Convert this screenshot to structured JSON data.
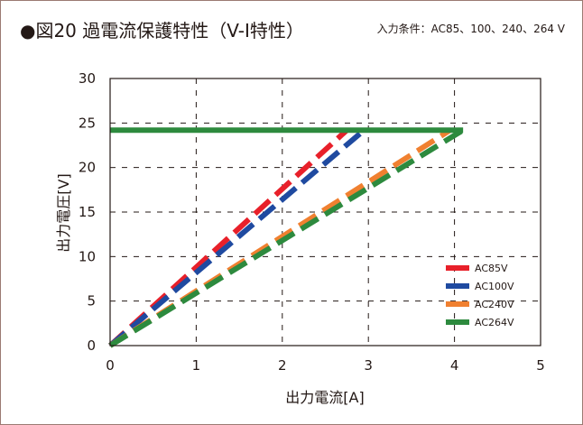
{
  "header": {
    "title": "●図20 過電流保護特性（V-I特性）",
    "conditions": "入力条件：AC85、100、240、264 V"
  },
  "chart_data": {
    "type": "line",
    "title": "●図20 過電流保護特性（V-I特性）",
    "xlabel": "出力電流[A]",
    "ylabel": "出力電圧[V]",
    "xlim": [
      0,
      5
    ],
    "ylim": [
      0,
      30
    ],
    "xticks": [
      "0",
      "1",
      "2",
      "3",
      "4",
      "5"
    ],
    "yticks": [
      "0",
      "5",
      "10",
      "15",
      "20",
      "25",
      "30"
    ],
    "grid": true,
    "legend_position": "lower-right",
    "series": [
      {
        "name": "AC85V",
        "color": "#e8202a",
        "dashed": true,
        "x": [
          0,
          2.75
        ],
        "y": [
          0,
          24.2
        ]
      },
      {
        "name": "AC100V",
        "color": "#1f4aa0",
        "dashed": true,
        "x": [
          0,
          2.95
        ],
        "y": [
          0,
          24.2
        ]
      },
      {
        "name": "AC240V",
        "color": "#f08030",
        "dashed": true,
        "x": [
          0,
          3.95
        ],
        "y": [
          0,
          24.2
        ]
      },
      {
        "name": "AC264V",
        "color": "#2d8a3e",
        "dashed": true,
        "x": [
          0,
          4.1,
          0
        ],
        "y": [
          0,
          24.2,
          24.2
        ]
      }
    ]
  }
}
